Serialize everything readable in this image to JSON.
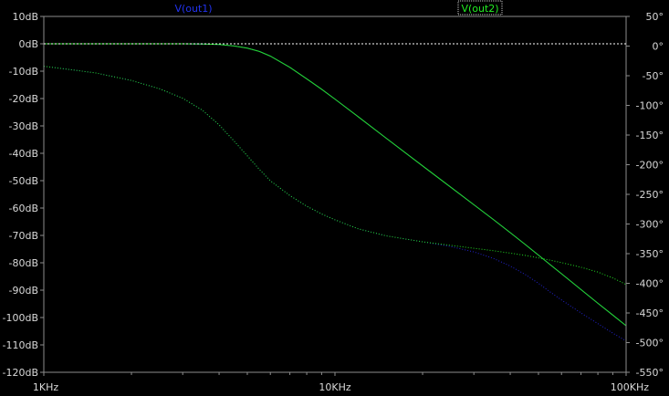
{
  "chart_data": {
    "type": "line",
    "title": "",
    "xlabel": "",
    "ylabel_left": "",
    "ylabel_right": "",
    "x_scale": "log",
    "xlim": [
      1000,
      100000
    ],
    "ylim_left": [
      -120,
      10
    ],
    "ylim_right": [
      -550,
      50
    ],
    "x_ticks": [
      {
        "value": 1000,
        "label": "1KHz"
      },
      {
        "value": 10000,
        "label": "10KHz"
      },
      {
        "value": 100000,
        "label": "100KHz"
      }
    ],
    "y_ticks_left": [
      {
        "value": 10,
        "label": "10dB"
      },
      {
        "value": 0,
        "label": "0dB"
      },
      {
        "value": -10,
        "label": "-10dB"
      },
      {
        "value": -20,
        "label": "-20dB"
      },
      {
        "value": -30,
        "label": "-30dB"
      },
      {
        "value": -40,
        "label": "-40dB"
      },
      {
        "value": -50,
        "label": "-50dB"
      },
      {
        "value": -60,
        "label": "-60dB"
      },
      {
        "value": -70,
        "label": "-70dB"
      },
      {
        "value": -80,
        "label": "-80dB"
      },
      {
        "value": -90,
        "label": "-90dB"
      },
      {
        "value": -100,
        "label": "-100dB"
      },
      {
        "value": -110,
        "label": "-110dB"
      },
      {
        "value": -120,
        "label": "-120dB"
      }
    ],
    "y_ticks_right": [
      {
        "value": 50,
        "label": "50°"
      },
      {
        "value": 0,
        "label": "0°"
      },
      {
        "value": -50,
        "label": "-50°"
      },
      {
        "value": -100,
        "label": "-100°"
      },
      {
        "value": -150,
        "label": "-150°"
      },
      {
        "value": -200,
        "label": "-200°"
      },
      {
        "value": -250,
        "label": "-250°"
      },
      {
        "value": -300,
        "label": "-300°"
      },
      {
        "value": -350,
        "label": "-350°"
      },
      {
        "value": -400,
        "label": "-400°"
      },
      {
        "value": -450,
        "label": "-450°"
      },
      {
        "value": -500,
        "label": "-500°"
      },
      {
        "value": -550,
        "label": "-550°"
      }
    ],
    "reference_line": {
      "axis": "left",
      "value": 0,
      "style": "dashed",
      "color": "#ffffff"
    },
    "background": "#000000",
    "axis_color": "#8c8c8c",
    "grid": false,
    "legend_placement": "top",
    "series": [
      {
        "name": "V(out1)",
        "axis": "left",
        "kind": "magnitude",
        "style": "solid",
        "color": "#2222cc",
        "x": [
          1000,
          1500,
          2000,
          2500,
          3000,
          3500,
          4000,
          4500,
          5000,
          5500,
          6000,
          7000,
          8000,
          9000,
          10000,
          12000,
          15000,
          20000,
          25000,
          30000,
          35000,
          40000,
          45000,
          50000,
          55000,
          60000,
          70000,
          80000,
          90000,
          100000
        ],
        "values": [
          0,
          0,
          0,
          0,
          0,
          -0.05,
          -0.25,
          -0.8,
          -1.6,
          -2.8,
          -4.5,
          -8.6,
          -12.8,
          -16.6,
          -20.2,
          -26.6,
          -34.5,
          -44.6,
          -52.4,
          -58.8,
          -64.2,
          -69,
          -73.3,
          -77.2,
          -80.8,
          -84,
          -89.8,
          -94.8,
          -99.1,
          -103
        ]
      },
      {
        "name": "V(out2)",
        "axis": "left",
        "kind": "magnitude",
        "style": "solid",
        "color": "#22dd22",
        "x": [
          1000,
          1500,
          2000,
          2500,
          3000,
          3500,
          4000,
          4500,
          5000,
          5500,
          6000,
          7000,
          8000,
          9000,
          10000,
          12000,
          15000,
          20000,
          25000,
          30000,
          35000,
          40000,
          45000,
          50000,
          55000,
          60000,
          70000,
          80000,
          90000,
          100000
        ],
        "values": [
          0,
          0,
          0,
          0,
          0,
          -0.05,
          -0.25,
          -0.8,
          -1.6,
          -2.8,
          -4.5,
          -8.6,
          -12.8,
          -16.6,
          -20.2,
          -26.6,
          -34.5,
          -44.6,
          -52.4,
          -58.8,
          -64.2,
          -69,
          -73.3,
          -77.2,
          -80.8,
          -84,
          -89.8,
          -94.8,
          -99.1,
          -103
        ]
      },
      {
        "name": "V(out1)",
        "axis": "right",
        "kind": "phase",
        "style": "dotted",
        "color": "#2222cc",
        "x": [
          1000,
          1500,
          2000,
          2500,
          3000,
          3500,
          4000,
          4500,
          5000,
          5500,
          6000,
          7000,
          8000,
          9000,
          10000,
          12000,
          15000,
          20000,
          25000,
          30000,
          35000,
          40000,
          45000,
          50000,
          55000,
          60000,
          70000,
          80000,
          90000,
          100000
        ],
        "values": [
          -34,
          -45,
          -58,
          -72,
          -88,
          -108,
          -133,
          -160,
          -185,
          -208,
          -227,
          -252,
          -270,
          -283,
          -293,
          -308,
          -320,
          -330,
          -338,
          -347,
          -358,
          -371,
          -385,
          -400,
          -415,
          -428,
          -450,
          -468,
          -484,
          -497
        ]
      },
      {
        "name": "V(out2)",
        "axis": "right",
        "kind": "phase",
        "style": "dotted",
        "color": "#22dd22",
        "x": [
          1000,
          1500,
          2000,
          2500,
          3000,
          3500,
          4000,
          4500,
          5000,
          5500,
          6000,
          7000,
          8000,
          9000,
          10000,
          12000,
          15000,
          20000,
          25000,
          30000,
          35000,
          40000,
          45000,
          50000,
          55000,
          60000,
          70000,
          80000,
          90000,
          100000
        ],
        "values": [
          -34,
          -45,
          -58,
          -72,
          -88,
          -108,
          -133,
          -160,
          -185,
          -208,
          -227,
          -252,
          -270,
          -283,
          -293,
          -308,
          -320,
          -330,
          -336,
          -341,
          -345,
          -349,
          -353,
          -357,
          -361,
          -365,
          -373,
          -381,
          -391,
          -402
        ]
      }
    ]
  },
  "legend": [
    {
      "label": "V(out1)",
      "color": "#2233ee",
      "boxed": false
    },
    {
      "label": "V(out2)",
      "color": "#22ee22",
      "boxed": true
    }
  ]
}
